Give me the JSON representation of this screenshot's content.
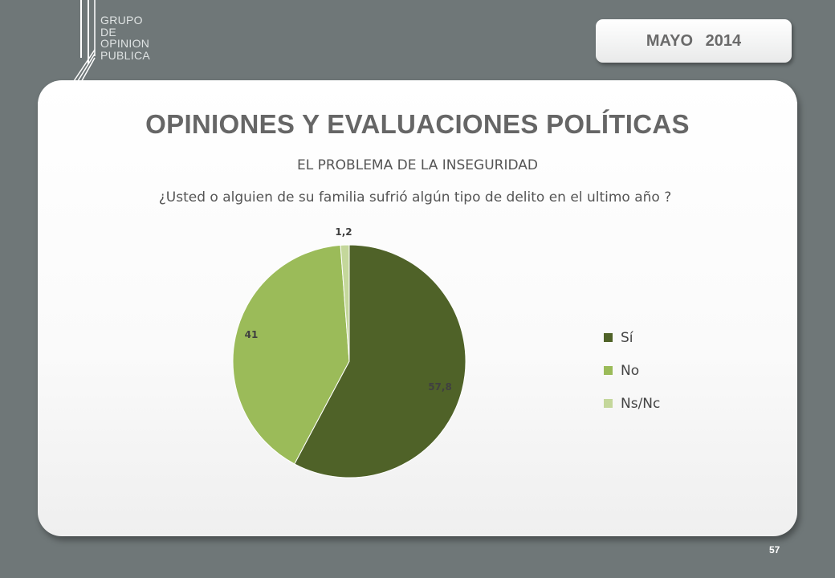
{
  "logo": {
    "lines": [
      "GRUPO",
      "DE",
      "OPINION",
      "PUBLICA"
    ]
  },
  "header": {
    "date_label": "MAYO 2014"
  },
  "main": {
    "title": "OPINIONES Y EVALUACIONES POLÍTICAS",
    "subtitle": "EL PROBLEMA DE LA INSEGURIDAD",
    "question": "¿Usted o alguien de su familia sufrió algún tipo de delito en el ultimo año ?"
  },
  "chart_data": {
    "type": "pie",
    "categories": [
      "Sí",
      "No",
      "Ns/Nc"
    ],
    "values": [
      57.8,
      41,
      1.2
    ],
    "data_labels": [
      "57,8",
      "41",
      "1,2"
    ],
    "colors": [
      "#4f6228",
      "#9bbb59",
      "#c4d79b"
    ],
    "legend_position": "right"
  },
  "footer": {
    "page_number": "57"
  }
}
